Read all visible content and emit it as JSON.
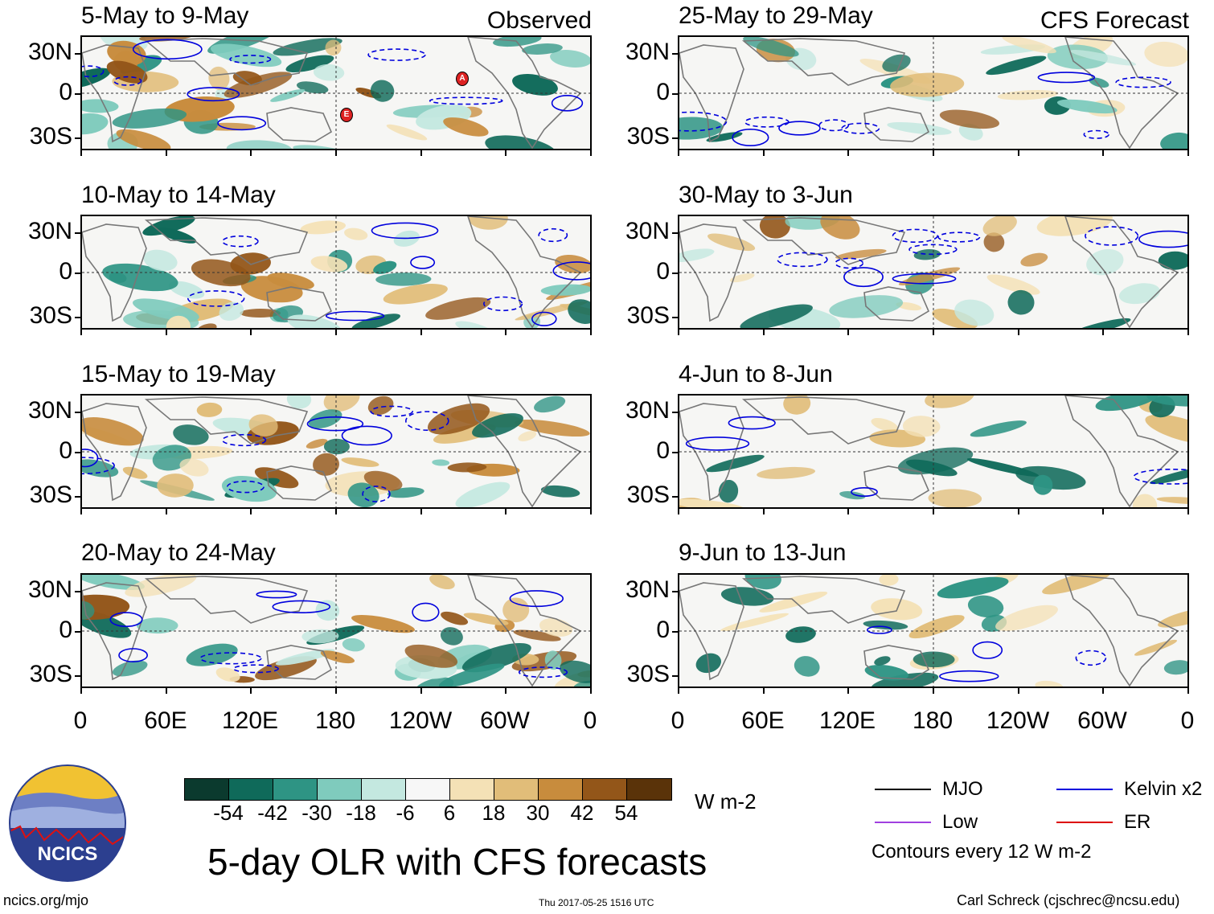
{
  "panels": [
    {
      "title": "5-May to 9-May",
      "tag": "Observed"
    },
    {
      "title": "10-May to 14-May",
      "tag": ""
    },
    {
      "title": "15-May to 19-May",
      "tag": ""
    },
    {
      "title": "20-May to 24-May",
      "tag": ""
    },
    {
      "title": "25-May to 29-May",
      "tag": "CFS Forecast"
    },
    {
      "title": "30-May to 3-Jun",
      "tag": ""
    },
    {
      "title": "4-Jun to 8-Jun",
      "tag": ""
    },
    {
      "title": "9-Jun to 13-Jun",
      "tag": ""
    }
  ],
  "lat_labels": [
    "30N",
    "0",
    "30S"
  ],
  "lon_labels": [
    "0",
    "60E",
    "120E",
    "180",
    "120W",
    "60W",
    "0"
  ],
  "storm_markers": [
    "A",
    "E"
  ],
  "colorbar": {
    "colors": [
      "#0b3a2e",
      "#0f6a5a",
      "#2e9484",
      "#7fcbbd",
      "#c4e8e0",
      "#f7f7f7",
      "#f4e1b6",
      "#e1bd79",
      "#c88c3d",
      "#935619",
      "#5a3309"
    ],
    "labels": [
      "-54",
      "-42",
      "-30",
      "-18",
      "-6",
      "6",
      "18",
      "30",
      "42",
      "54"
    ],
    "units": "W m-2"
  },
  "title": "5-day OLR with CFS forecasts",
  "legend": [
    {
      "label": "MJO",
      "color": "#000000"
    },
    {
      "label": "Kelvin x2",
      "color": "#0000dd"
    },
    {
      "label": "Low",
      "color": "#a040e0"
    },
    {
      "label": "ER",
      "color": "#dd0000"
    }
  ],
  "contour_note": "Contours every 12 W m-2",
  "logo_text": "NCICS",
  "footer": {
    "url": "ncics.org/mjo",
    "timestamp": "Thu 2017-05-25 1516 UTC",
    "credit": "Carl Schreck (cjschrec@ncsu.edu)"
  }
}
